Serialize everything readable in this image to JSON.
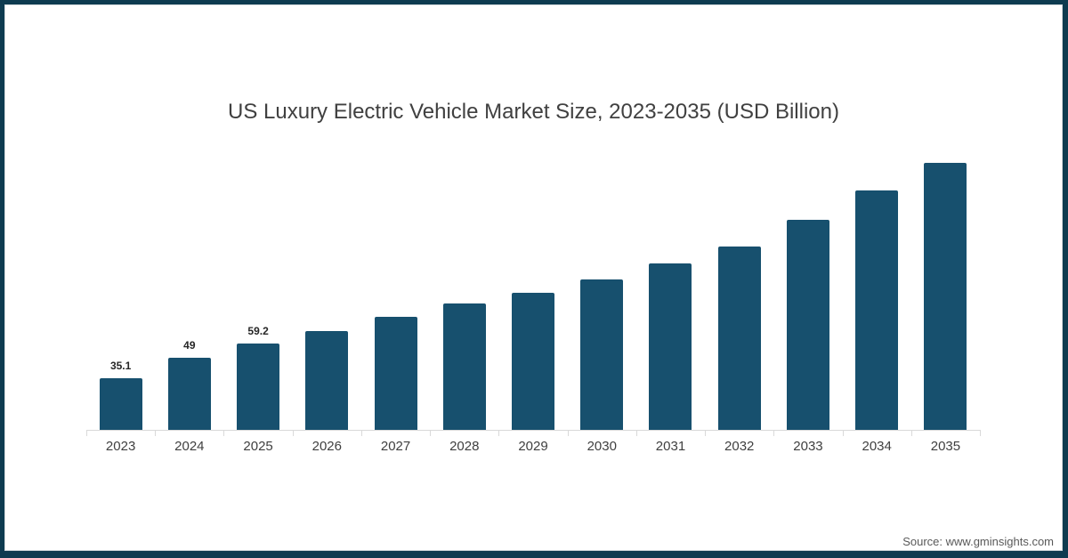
{
  "frame": {
    "border_color": "#0E3B50",
    "inner_line_color": "#D3D9DC",
    "background": "#FFFFFF"
  },
  "chart_data": {
    "type": "bar",
    "title": "US Luxury Electric Vehicle Market Size, 2023-2035 (USD Billion)",
    "categories": [
      "2023",
      "2024",
      "2025",
      "2026",
      "2027",
      "2028",
      "2029",
      "2030",
      "2031",
      "2032",
      "2033",
      "2034",
      "2035"
    ],
    "values": [
      35.1,
      49,
      59.2,
      67.5,
      77.1,
      86.1,
      93.6,
      102.7,
      113.8,
      125.2,
      143.6,
      163.6,
      182
    ],
    "data_labels": [
      "35.1",
      "49",
      "59.2",
      "",
      "",
      "",
      "",
      "",
      "",
      "",
      "",
      "",
      ""
    ],
    "xlabel": "",
    "ylabel": "",
    "ylim": [
      0,
      185
    ],
    "grid": false,
    "legend": "none",
    "bar_color": "#17506E",
    "axis_line_color": "#D9D9D9",
    "title_color": "#404040",
    "data_label_color": "#262626",
    "category_label_color": "#3F3F3F"
  },
  "source": {
    "text": "Source: www.gminsights.com",
    "color": "#595959"
  }
}
